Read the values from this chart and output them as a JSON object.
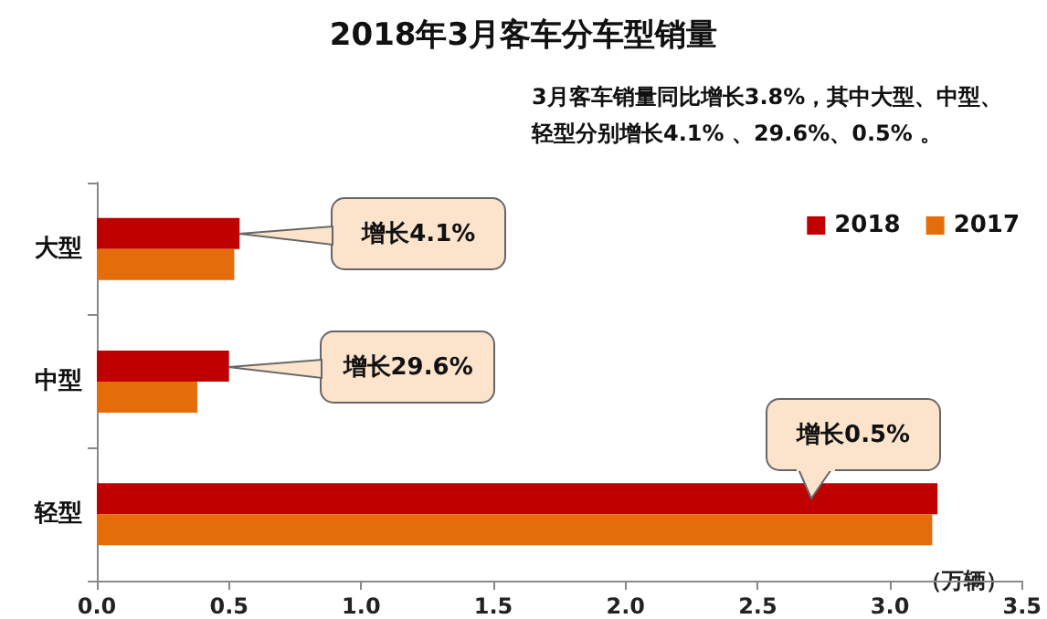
{
  "chart_data": {
    "type": "bar",
    "orientation": "horizontal",
    "title": "2018年3月客车分车型销量",
    "subtitle": "3月客车销量同比增长3.8%，其中大型、中型、轻型分别增长4.1% 、29.6%、0.5% 。",
    "xlabel": "（万辆）",
    "categories": [
      "大型",
      "中型",
      "轻型"
    ],
    "series": [
      {
        "name": "2018",
        "color": "#c00000",
        "values": [
          0.54,
          0.5,
          3.18
        ]
      },
      {
        "name": "2017",
        "color": "#e46c0a",
        "values": [
          0.52,
          0.38,
          3.16
        ]
      }
    ],
    "xlim": [
      0,
      3.5
    ],
    "xticks": [
      {
        "value": 0,
        "label": "0.0"
      },
      {
        "value": 0.5,
        "label": "0.5"
      },
      {
        "value": 1,
        "label": "1.0"
      },
      {
        "value": 1.5,
        "label": "1.5"
      },
      {
        "value": 2,
        "label": "2.0"
      },
      {
        "value": 2.5,
        "label": "2.5"
      },
      {
        "value": 3,
        "label": "3.0"
      },
      {
        "value": 3.5,
        "label": "3.5"
      }
    ],
    "legend": "top right",
    "grid": false,
    "annotations": [
      "增长4.1%",
      "增长29.6%",
      "增长0.5%"
    ]
  }
}
